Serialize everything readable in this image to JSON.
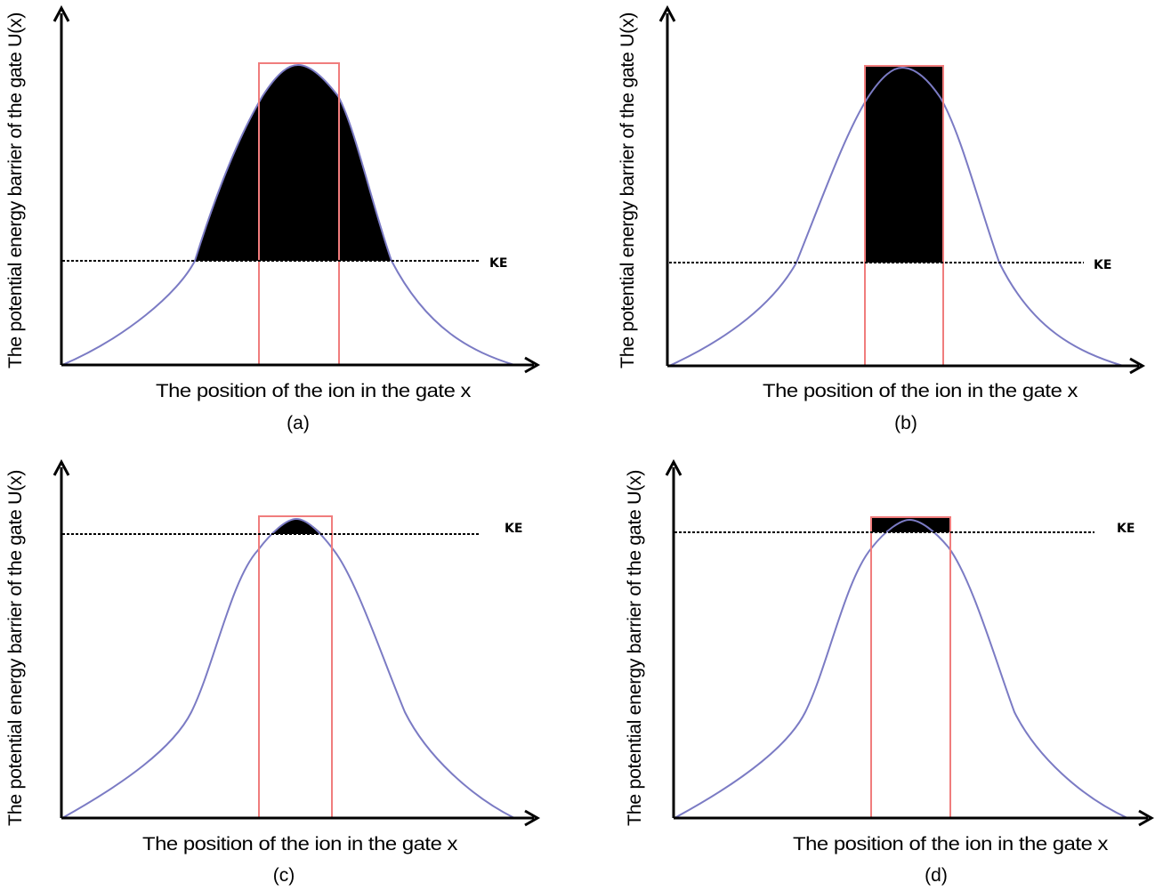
{
  "figure": {
    "ylabel": "The potential energy barrier of the gate U(x)",
    "xlabel": "The position of the ion in the gate x",
    "ke_label": "KE",
    "colors": {
      "curve": "#7b7bc4",
      "gate_box": "#f07d7d",
      "fill": "#000000",
      "axis": "#000000",
      "ke_line": "#000000"
    },
    "panels": [
      {
        "id": "a",
        "caption": "(a)",
        "ke_fraction": 0.34,
        "shading": "area-under-curve-above-KE"
      },
      {
        "id": "b",
        "caption": "(b)",
        "ke_fraction": 0.34,
        "shading": "rectangle-inside-gate-above-KE"
      },
      {
        "id": "c",
        "caption": "(c)",
        "ke_fraction": 0.95,
        "shading": "area-under-curve-above-KE"
      },
      {
        "id": "d",
        "caption": "(d)",
        "ke_fraction": 0.955,
        "shading": "rectangle-inside-gate-above-KE"
      }
    ]
  }
}
